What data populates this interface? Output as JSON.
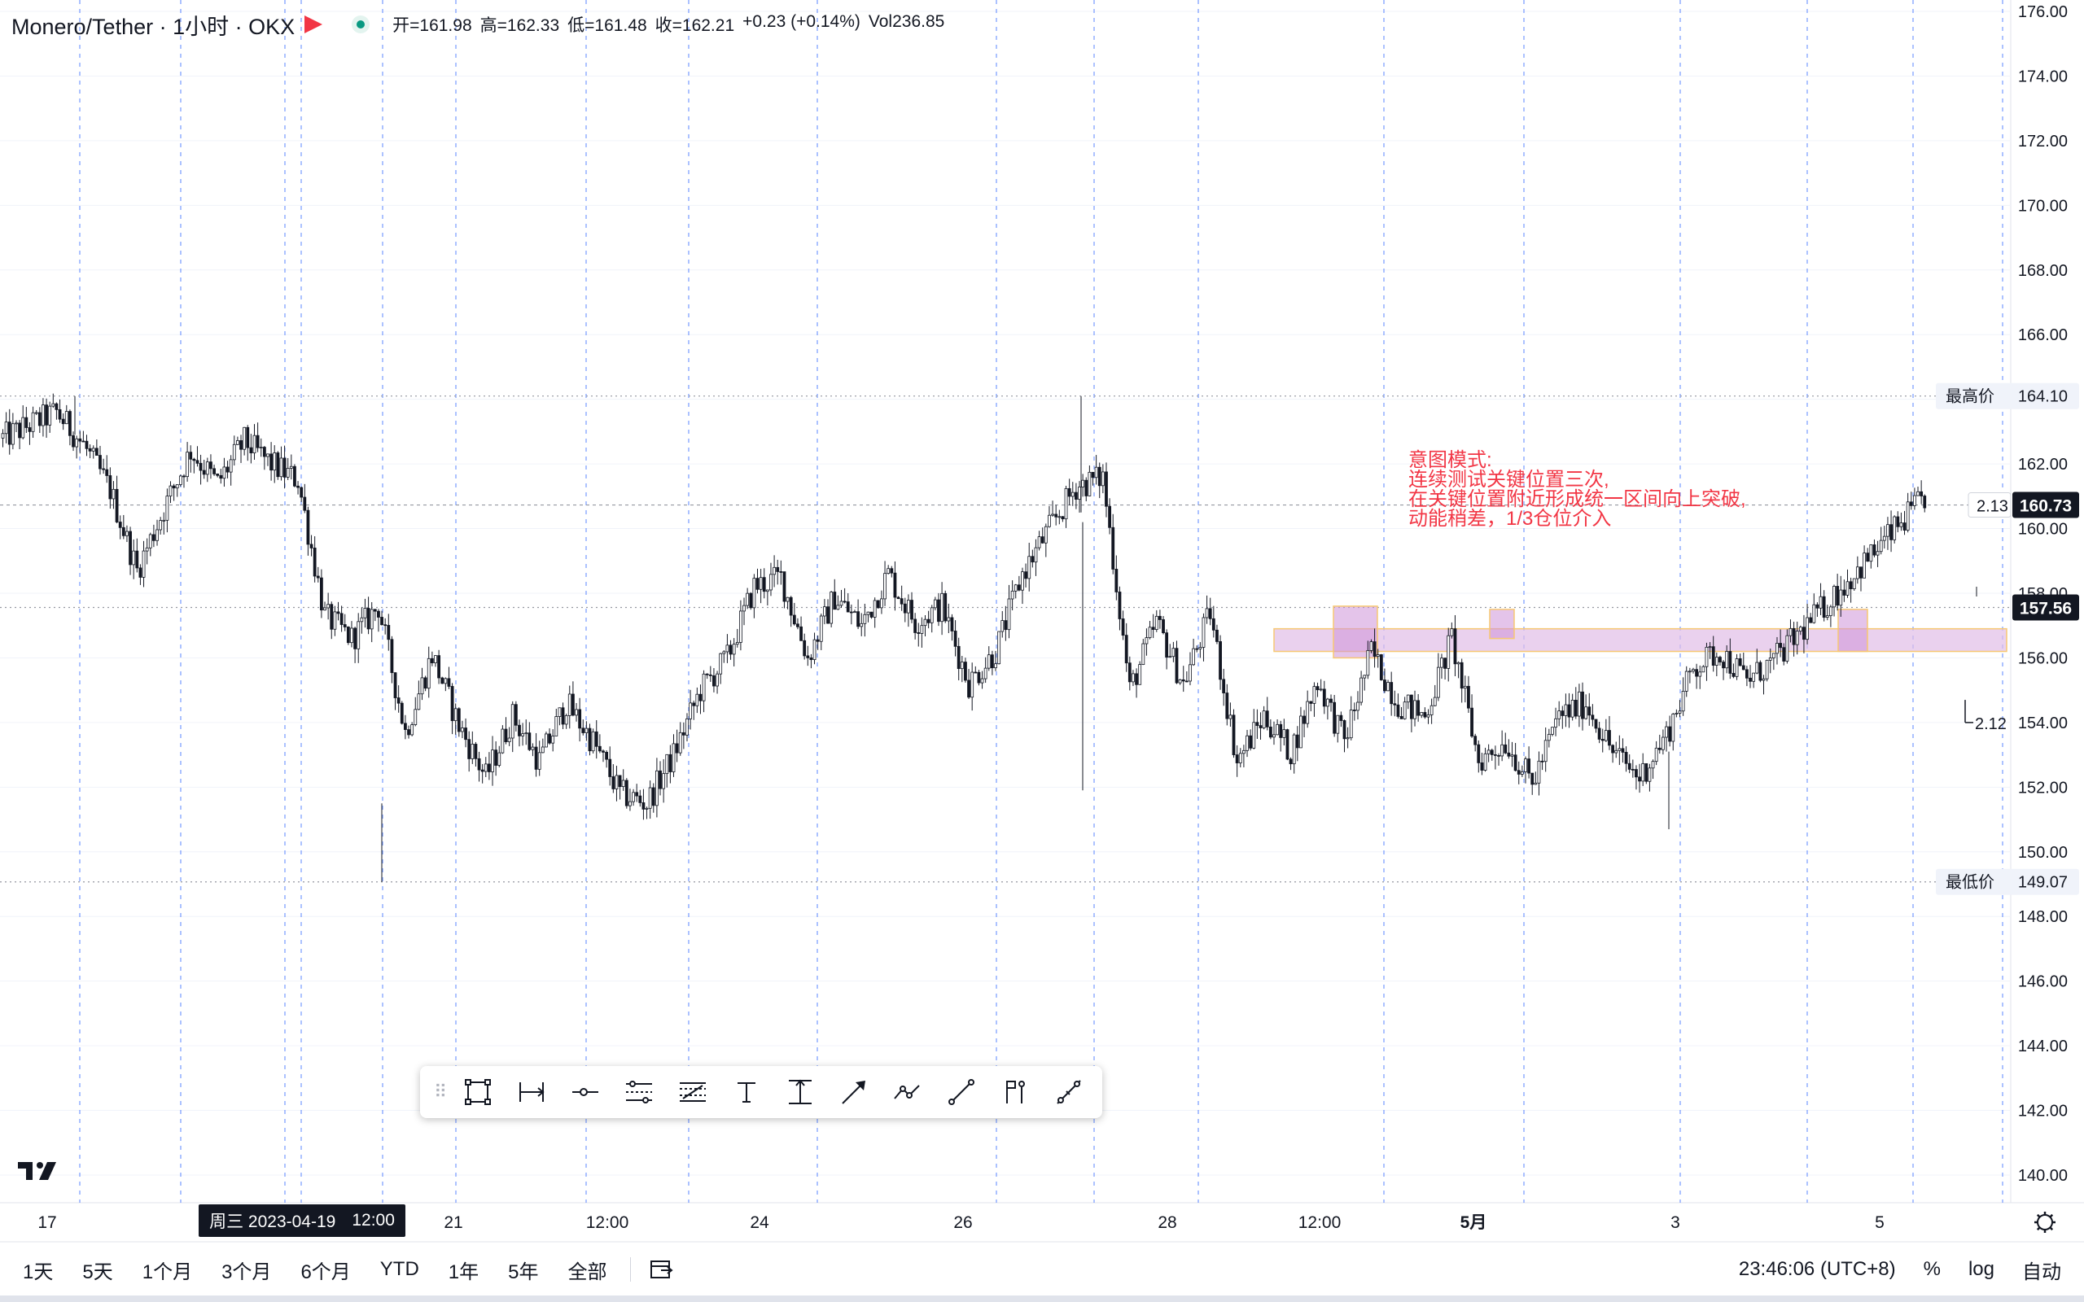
{
  "header": {
    "symbol": "Monero/Tether · 1小时 · OKX",
    "ohlc": {
      "open": "开=161.98",
      "high": "高=162.33",
      "low": "低=161.48",
      "close": "收=162.21",
      "change": "+0.23 (+0.14%)",
      "vol": "Vol236.85"
    }
  },
  "chart_data": {
    "type": "candlestick",
    "timeframe": "1小时",
    "ylim": [
      139,
      176
    ],
    "y_ticks": [
      "176.00",
      "174.00",
      "172.00",
      "170.00",
      "168.00",
      "166.00",
      "164.00",
      "162.00",
      "160.00",
      "158.00",
      "156.00",
      "154.00",
      "152.00",
      "150.00",
      "148.00",
      "146.00",
      "144.00",
      "142.00",
      "140.00"
    ],
    "x_ticks": [
      "17",
      "21",
      "12:00",
      "24",
      "26",
      "28",
      "12:00",
      "5月",
      "3",
      "5"
    ],
    "highest": {
      "label": "最高价",
      "value": "164.10"
    },
    "lowest": {
      "label": "最低价",
      "value": "149.07"
    },
    "last_price": "157.56",
    "crosshair_price": "160.73",
    "measure_labels": [
      "2.13",
      "2.12"
    ],
    "resistance_zone": [
      156.3,
      156.8
    ],
    "anchors": [
      [
        0,
        162.8
      ],
      [
        3,
        163.2
      ],
      [
        5,
        163.6
      ],
      [
        6,
        162.6
      ],
      [
        8,
        161.2
      ],
      [
        9,
        158.7
      ],
      [
        10,
        160.6
      ],
      [
        11,
        162.4
      ],
      [
        12,
        161.4
      ],
      [
        13,
        162.7
      ],
      [
        14,
        162.0
      ],
      [
        15,
        161.5
      ],
      [
        16,
        157.3
      ],
      [
        17,
        156.6
      ],
      [
        18,
        157.6
      ],
      [
        19,
        153.7
      ],
      [
        20,
        156.1
      ],
      [
        21,
        153.9
      ],
      [
        22,
        152.3
      ],
      [
        23,
        154.2
      ],
      [
        24,
        152.8
      ],
      [
        25,
        154.6
      ],
      [
        26,
        153.4
      ],
      [
        27,
        151.8
      ],
      [
        28,
        151.5
      ],
      [
        29,
        153.0
      ],
      [
        30,
        155.0
      ],
      [
        31,
        156.0
      ],
      [
        32,
        158.2
      ],
      [
        33,
        158.5
      ],
      [
        34,
        156.0
      ],
      [
        35,
        157.9
      ],
      [
        36,
        157.0
      ],
      [
        37,
        158.6
      ],
      [
        38,
        157.1
      ],
      [
        39,
        157.6
      ],
      [
        40,
        155.2
      ],
      [
        41,
        156.2
      ],
      [
        42,
        158.6
      ],
      [
        43,
        160.0
      ],
      [
        44,
        161.3
      ],
      [
        45,
        161.6
      ],
      [
        46,
        155.0
      ],
      [
        47,
        157.1
      ],
      [
        48,
        155.2
      ],
      [
        49,
        157.4
      ],
      [
        50,
        152.8
      ],
      [
        51,
        154.2
      ],
      [
        52,
        153.1
      ],
      [
        53,
        155.3
      ],
      [
        54,
        153.4
      ],
      [
        55,
        156.2
      ],
      [
        56,
        154.6
      ],
      [
        57,
        154.2
      ],
      [
        58,
        156.6
      ],
      [
        59,
        152.8
      ],
      [
        60,
        153.4
      ],
      [
        61,
        152.1
      ],
      [
        62,
        154.2
      ],
      [
        63,
        154.6
      ],
      [
        64,
        153.1
      ],
      [
        65,
        152.3
      ],
      [
        66,
        153.6
      ],
      [
        67,
        155.7
      ],
      [
        68,
        156.2
      ],
      [
        69,
        155.3
      ],
      [
        70,
        155.9
      ],
      [
        71,
        156.8
      ]
    ]
  },
  "annotation": {
    "lines": [
      "意图模式:",
      "连续测试关键位置三次,",
      "在关键位置附近形成统一区间向上突破,",
      "动能稍差，1/3仓位介入"
    ]
  },
  "date_badge": {
    "date": "周三 2023-04-19",
    "time": "12:00"
  },
  "toolbar": {
    "tools": [
      "rectangle-icon",
      "date-range-icon",
      "horizontal-ray-icon",
      "parallel-channel-icon",
      "fib-retracement-icon",
      "text-icon",
      "price-range-icon",
      "arrow-icon",
      "path-icon",
      "trend-line-icon",
      "flag-marker-icon",
      "ruler-icon"
    ]
  },
  "bottom": {
    "ranges": [
      "1天",
      "5天",
      "1个月",
      "3个月",
      "6个月",
      "YTD",
      "1年",
      "5年",
      "全部"
    ],
    "clock": "23:46:06 (UTC+8)",
    "percent": "%",
    "log": "log",
    "auto": "自动"
  }
}
